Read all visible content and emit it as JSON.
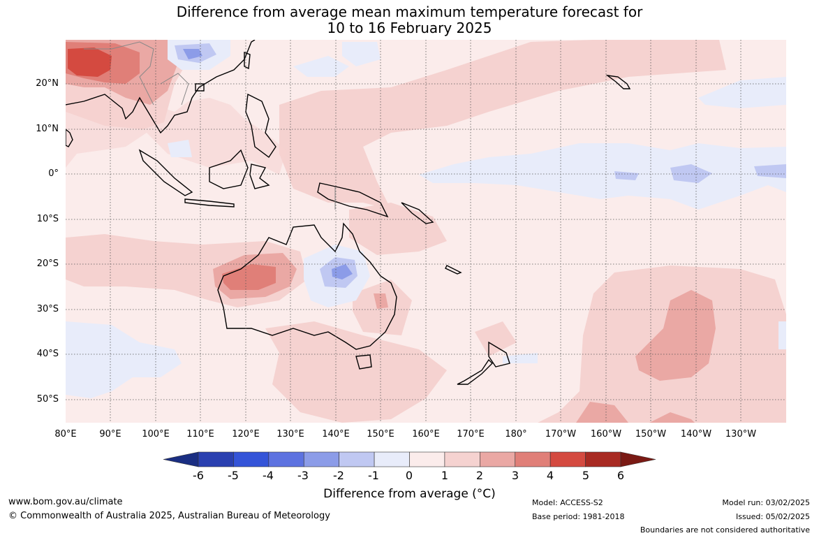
{
  "title": {
    "line1": "Difference from average mean maximum temperature forecast for",
    "line2": "10 to 16 February 2025"
  },
  "map": {
    "lon_range": [
      80,
      240
    ],
    "lat_range": [
      -55,
      30
    ],
    "gridlines": "dotted",
    "lat_labels": [
      "20°N",
      "10°N",
      "0°",
      "10°S",
      "20°S",
      "30°S",
      "40°S",
      "50°S"
    ],
    "lon_labels": [
      "80°E",
      "90°E",
      "100°E",
      "110°E",
      "120°E",
      "130°E",
      "140°E",
      "150°E",
      "160°E",
      "170°E",
      "180°",
      "170°W",
      "160°W",
      "150°W",
      "140°W",
      "130°W"
    ],
    "background_bin": "0 to 1",
    "notable_anomalies": [
      {
        "region": "Southeast Asia / southern China",
        "range": "3 to 5"
      },
      {
        "region": "Western Australia interior",
        "range": "2 to 3"
      },
      {
        "region": "Northern Queensland interior",
        "range": "-2 to -1"
      },
      {
        "region": "Equatorial central Pacific",
        "range": "-1 to 0"
      },
      {
        "region": "Southeast Pacific near 145°W 35°S",
        "range": "2 to 3"
      },
      {
        "region": "Southern Indian Ocean near 40°S 90°E",
        "range": "-1 to 0"
      }
    ]
  },
  "colorbar": {
    "labels": [
      "-6",
      "-5",
      "-4",
      "-3",
      "-2",
      "-1",
      "0",
      "1",
      "2",
      "3",
      "4",
      "5",
      "6"
    ],
    "colors": [
      "#1a2e82",
      "#2a40b0",
      "#3454d8",
      "#5d72e0",
      "#8c9ce8",
      "#c0c8f2",
      "#e8ecfa",
      "#fbeceb",
      "#f5d2d0",
      "#eaa8a4",
      "#e07f78",
      "#d44a40",
      "#a82a22",
      "#7a1a14"
    ],
    "title": "Difference from average (°C)"
  },
  "footer": {
    "url": "www.bom.gov.au/climate",
    "copyright": "© Commonwealth of Australia 2025, Australian Bureau of Meteorology",
    "model": "Model: ACCESS-S2",
    "base_period": "Base period: 1981-2018",
    "model_run": "Model run: 03/02/2025",
    "issued": "Issued: 05/02/2025",
    "disclaimer": "Boundaries are not considered authoritative"
  }
}
